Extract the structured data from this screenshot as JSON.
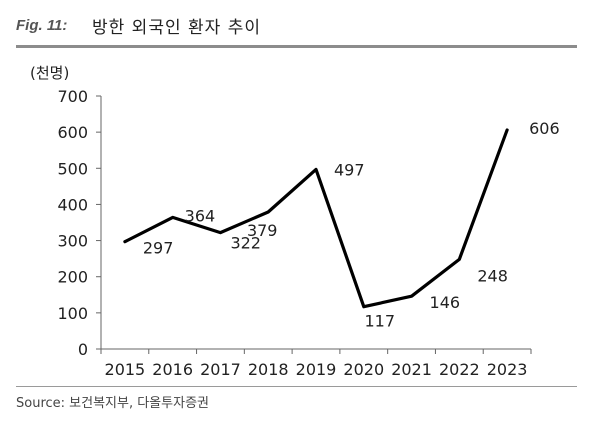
{
  "figure": {
    "label": "Fig. 11:",
    "title": "방한 외국인 환자 추이",
    "source": "Source:  보건복지부, 다올투자증권"
  },
  "chart_data": {
    "type": "line",
    "title": "방한 외국인 환자 추이",
    "unit_label": "(천명)",
    "x": [
      "2015",
      "2016",
      "2017",
      "2018",
      "2019",
      "2020",
      "2021",
      "2022",
      "2023"
    ],
    "series": [
      {
        "values": [
          297,
          364,
          322,
          379,
          497,
          117,
          146,
          248,
          606
        ]
      }
    ],
    "data_labels": [
      "297",
      "364",
      "322",
      "379",
      "497",
      "117",
      "146",
      "248",
      "606"
    ],
    "ylim": [
      0,
      700
    ],
    "yticks": [
      0,
      100,
      200,
      300,
      400,
      500,
      600,
      700
    ],
    "grid": false,
    "legend": "none",
    "line_color": "#000000"
  }
}
